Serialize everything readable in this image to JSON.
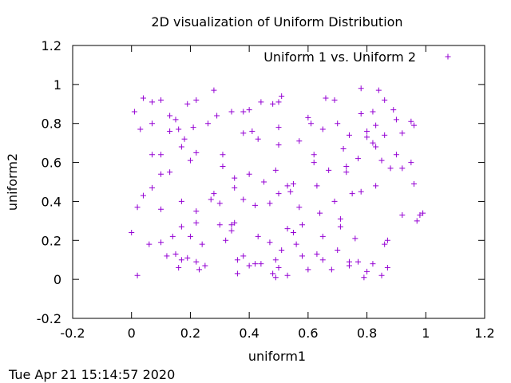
{
  "chart_data": {
    "type": "scatter",
    "title": "2D visualization of Uniform Distribution",
    "xlabel": "uniform1",
    "ylabel": "uniform2",
    "xlim": [
      -0.2,
      1.2
    ],
    "ylim": [
      -0.2,
      1.2
    ],
    "xticks": [
      "-0.2",
      "0",
      "0.2",
      "0.4",
      "0.6",
      "0.8",
      "1",
      "1.2"
    ],
    "yticks": [
      "-0.2",
      "0",
      "0.2",
      "0.4",
      "0.6",
      "0.8",
      "1",
      "1.2"
    ],
    "legend_placement": "top-right",
    "grid": false,
    "marker": "plus",
    "color": "#9400d3",
    "series": [
      {
        "name": "Uniform 1 vs. Uniform 2",
        "points": [
          [
            0.01,
            0.86
          ],
          [
            0.04,
            0.93
          ],
          [
            0.07,
            0.91
          ],
          [
            0.1,
            0.92
          ],
          [
            0.13,
            0.84
          ],
          [
            0.15,
            0.82
          ],
          [
            0.19,
            0.9
          ],
          [
            0.22,
            0.92
          ],
          [
            0.28,
            0.97
          ],
          [
            0.34,
            0.86
          ],
          [
            0.38,
            0.86
          ],
          [
            0.4,
            0.87
          ],
          [
            0.44,
            0.91
          ],
          [
            0.48,
            0.9
          ],
          [
            0.5,
            0.91
          ],
          [
            0.51,
            0.94
          ],
          [
            0.6,
            0.83
          ],
          [
            0.66,
            0.93
          ],
          [
            0.69,
            0.92
          ],
          [
            0.78,
            0.98
          ],
          [
            0.84,
            0.97
          ],
          [
            0.86,
            0.92
          ],
          [
            0.89,
            0.87
          ],
          [
            0.9,
            0.82
          ],
          [
            0.95,
            0.81
          ],
          [
            0.03,
            0.77
          ],
          [
            0.07,
            0.8
          ],
          [
            0.1,
            0.64
          ],
          [
            0.13,
            0.76
          ],
          [
            0.16,
            0.77
          ],
          [
            0.18,
            0.72
          ],
          [
            0.21,
            0.78
          ],
          [
            0.26,
            0.8
          ],
          [
            0.29,
            0.84
          ],
          [
            0.31,
            0.64
          ],
          [
            0.38,
            0.75
          ],
          [
            0.41,
            0.76
          ],
          [
            0.43,
            0.72
          ],
          [
            0.5,
            0.78
          ],
          [
            0.5,
            0.69
          ],
          [
            0.57,
            0.71
          ],
          [
            0.61,
            0.8
          ],
          [
            0.65,
            0.77
          ],
          [
            0.7,
            0.8
          ],
          [
            0.74,
            0.74
          ],
          [
            0.78,
            0.85
          ],
          [
            0.8,
            0.76
          ],
          [
            0.82,
            0.86
          ],
          [
            0.83,
            0.79
          ],
          [
            0.86,
            0.74
          ],
          [
            0.92,
            0.75
          ],
          [
            0.96,
            0.79
          ],
          [
            0.07,
            0.64
          ],
          [
            0.1,
            0.54
          ],
          [
            0.13,
            0.55
          ],
          [
            0.17,
            0.68
          ],
          [
            0.2,
            0.61
          ],
          [
            0.22,
            0.65
          ],
          [
            0.31,
            0.58
          ],
          [
            0.35,
            0.52
          ],
          [
            0.4,
            0.54
          ],
          [
            0.45,
            0.5
          ],
          [
            0.49,
            0.56
          ],
          [
            0.5,
            0.44
          ],
          [
            0.54,
            0.45
          ],
          [
            0.62,
            0.64
          ],
          [
            0.62,
            0.6
          ],
          [
            0.67,
            0.56
          ],
          [
            0.72,
            0.67
          ],
          [
            0.73,
            0.58
          ],
          [
            0.73,
            0.55
          ],
          [
            0.77,
            0.62
          ],
          [
            0.8,
            0.73
          ],
          [
            0.82,
            0.7
          ],
          [
            0.83,
            0.68
          ],
          [
            0.85,
            0.61
          ],
          [
            0.88,
            0.57
          ],
          [
            0.9,
            0.64
          ],
          [
            0.92,
            0.57
          ],
          [
            0.95,
            0.6
          ],
          [
            0.02,
            0.37
          ],
          [
            0.04,
            0.43
          ],
          [
            0.07,
            0.47
          ],
          [
            0.1,
            0.36
          ],
          [
            0.17,
            0.4
          ],
          [
            0.22,
            0.29
          ],
          [
            0.22,
            0.35
          ],
          [
            0.27,
            0.41
          ],
          [
            0.28,
            0.44
          ],
          [
            0.3,
            0.39
          ],
          [
            0.34,
            0.28
          ],
          [
            0.35,
            0.47
          ],
          [
            0.38,
            0.41
          ],
          [
            0.42,
            0.38
          ],
          [
            0.47,
            0.39
          ],
          [
            0.53,
            0.48
          ],
          [
            0.55,
            0.49
          ],
          [
            0.57,
            0.37
          ],
          [
            0.63,
            0.48
          ],
          [
            0.64,
            0.34
          ],
          [
            0.69,
            0.4
          ],
          [
            0.71,
            0.31
          ],
          [
            0.75,
            0.44
          ],
          [
            0.78,
            0.45
          ],
          [
            0.83,
            0.48
          ],
          [
            0.92,
            0.33
          ],
          [
            0.97,
            0.3
          ],
          [
            0.98,
            0.33
          ],
          [
            0.99,
            0.34
          ],
          [
            0.96,
            0.49
          ],
          [
            0.0,
            0.24
          ],
          [
            0.06,
            0.18
          ],
          [
            0.1,
            0.19
          ],
          [
            0.14,
            0.22
          ],
          [
            0.15,
            0.13
          ],
          [
            0.17,
            0.1
          ],
          [
            0.17,
            0.27
          ],
          [
            0.19,
            0.11
          ],
          [
            0.2,
            0.22
          ],
          [
            0.22,
            0.09
          ],
          [
            0.24,
            0.18
          ],
          [
            0.3,
            0.28
          ],
          [
            0.32,
            0.2
          ],
          [
            0.34,
            0.25
          ],
          [
            0.35,
            0.29
          ],
          [
            0.38,
            0.12
          ],
          [
            0.42,
            0.08
          ],
          [
            0.43,
            0.22
          ],
          [
            0.47,
            0.19
          ],
          [
            0.49,
            0.1
          ],
          [
            0.51,
            0.15
          ],
          [
            0.53,
            0.26
          ],
          [
            0.55,
            0.24
          ],
          [
            0.56,
            0.18
          ],
          [
            0.58,
            0.28
          ],
          [
            0.58,
            0.12
          ],
          [
            0.63,
            0.13
          ],
          [
            0.65,
            0.22
          ],
          [
            0.7,
            0.15
          ],
          [
            0.71,
            0.27
          ],
          [
            0.74,
            0.09
          ],
          [
            0.76,
            0.21
          ],
          [
            0.77,
            0.09
          ],
          [
            0.82,
            0.08
          ],
          [
            0.86,
            0.18
          ],
          [
            0.87,
            0.2
          ],
          [
            0.02,
            0.02
          ],
          [
            0.12,
            0.12
          ],
          [
            0.16,
            0.06
          ],
          [
            0.23,
            0.05
          ],
          [
            0.25,
            0.07
          ],
          [
            0.36,
            0.1
          ],
          [
            0.36,
            0.03
          ],
          [
            0.4,
            0.07
          ],
          [
            0.44,
            0.08
          ],
          [
            0.48,
            0.03
          ],
          [
            0.49,
            0.01
          ],
          [
            0.5,
            0.06
          ],
          [
            0.53,
            0.02
          ],
          [
            0.6,
            0.05
          ],
          [
            0.65,
            0.1
          ],
          [
            0.68,
            0.05
          ],
          [
            0.74,
            0.07
          ],
          [
            0.79,
            0.01
          ],
          [
            0.8,
            0.04
          ],
          [
            0.85,
            0.02
          ],
          [
            0.87,
            0.06
          ]
        ]
      }
    ]
  },
  "footer": {
    "timestamp": "Tue Apr 21 15:14:57 2020"
  }
}
